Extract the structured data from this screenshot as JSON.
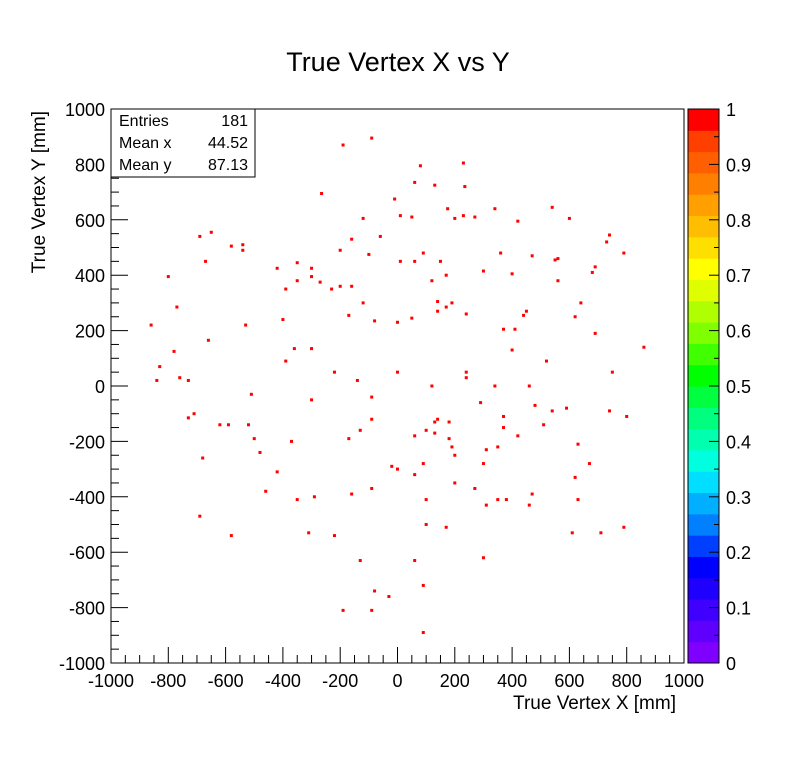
{
  "chart_data": {
    "type": "scatter",
    "title": "True Vertex X vs Y",
    "xlabel": "True Vertex X [mm]",
    "ylabel": "True Vertex Y [mm]",
    "xlim": [
      -1000,
      1000
    ],
    "ylim": [
      -1000,
      1000
    ],
    "x_ticks": [
      -1000,
      -800,
      -600,
      -400,
      -200,
      0,
      200,
      400,
      600,
      800,
      1000
    ],
    "y_ticks": [
      -1000,
      -800,
      -600,
      -400,
      -200,
      0,
      200,
      400,
      600,
      800,
      1000
    ],
    "grid": false,
    "marker_color": "#ff0000",
    "stats_box": {
      "placement": "top-left",
      "rows": [
        {
          "label": "Entries",
          "value": "181"
        },
        {
          "label": "Mean x",
          "value": "44.52"
        },
        {
          "label": "Mean y",
          "value": "87.13"
        }
      ]
    },
    "colorbar": {
      "placement": "right",
      "min": 0,
      "max": 1,
      "tick_labels": [
        "0",
        "0.1",
        "0.2",
        "0.3",
        "0.4",
        "0.5",
        "0.6",
        "0.7",
        "0.8",
        "0.9",
        "1"
      ],
      "colors": [
        "#7f00ff",
        "#5f00ff",
        "#3f00ff",
        "#1f00ff",
        "#0000ff",
        "#003fff",
        "#007fff",
        "#00afff",
        "#00dfff",
        "#00ffdf",
        "#00ffaf",
        "#00ff7f",
        "#00ff3f",
        "#00ff00",
        "#3fff00",
        "#7fff00",
        "#afff00",
        "#dfff00",
        "#ffff00",
        "#ffdf00",
        "#ffbf00",
        "#ff9f00",
        "#ff7f00",
        "#ff5f00",
        "#ff3f00",
        "#ff0000"
      ]
    },
    "points": [
      [
        -190,
        870
      ],
      [
        -90,
        895
      ],
      [
        80,
        795
      ],
      [
        230,
        805
      ],
      [
        -10,
        675
      ],
      [
        60,
        735
      ],
      [
        130,
        725
      ],
      [
        235,
        720
      ],
      [
        -265,
        695
      ],
      [
        340,
        640
      ],
      [
        540,
        645
      ],
      [
        600,
        605
      ],
      [
        420,
        595
      ],
      [
        -120,
        605
      ],
      [
        10,
        615
      ],
      [
        175,
        640
      ],
      [
        200,
        605
      ],
      [
        230,
        615
      ],
      [
        270,
        610
      ],
      [
        50,
        610
      ],
      [
        -690,
        540
      ],
      [
        -650,
        555
      ],
      [
        -580,
        505
      ],
      [
        -540,
        510
      ],
      [
        -540,
        490
      ],
      [
        -200,
        490
      ],
      [
        -160,
        530
      ],
      [
        -60,
        540
      ],
      [
        -100,
        475
      ],
      [
        10,
        450
      ],
      [
        90,
        480
      ],
      [
        60,
        450
      ],
      [
        150,
        450
      ],
      [
        360,
        480
      ],
      [
        470,
        470
      ],
      [
        560,
        460
      ],
      [
        550,
        455
      ],
      [
        690,
        430
      ],
      [
        680,
        410
      ],
      [
        740,
        545
      ],
      [
        730,
        520
      ],
      [
        790,
        480
      ],
      [
        -420,
        425
      ],
      [
        -350,
        445
      ],
      [
        -300,
        425
      ],
      [
        -300,
        395
      ],
      [
        -270,
        375
      ],
      [
        -390,
        350
      ],
      [
        -160,
        360
      ],
      [
        -800,
        395
      ],
      [
        -670,
        450
      ],
      [
        400,
        405
      ],
      [
        300,
        415
      ],
      [
        170,
        400
      ],
      [
        120,
        380
      ],
      [
        560,
        380
      ],
      [
        -770,
        285
      ],
      [
        -530,
        220
      ],
      [
        -400,
        240
      ],
      [
        -350,
        380
      ],
      [
        -230,
        350
      ],
      [
        -200,
        360
      ],
      [
        -120,
        300
      ],
      [
        -170,
        255
      ],
      [
        -80,
        235
      ],
      [
        0,
        230
      ],
      [
        50,
        245
      ],
      [
        140,
        305
      ],
      [
        140,
        270
      ],
      [
        170,
        285
      ],
      [
        190,
        300
      ],
      [
        240,
        260
      ],
      [
        370,
        205
      ],
      [
        410,
        205
      ],
      [
        440,
        255
      ],
      [
        450,
        270
      ],
      [
        620,
        250
      ],
      [
        640,
        300
      ],
      [
        690,
        190
      ],
      [
        -860,
        220
      ],
      [
        -780,
        125
      ],
      [
        -660,
        165
      ],
      [
        -360,
        135
      ],
      [
        -300,
        135
      ],
      [
        -390,
        90
      ],
      [
        -220,
        50
      ],
      [
        -140,
        20
      ],
      [
        0,
        50
      ],
      [
        120,
        0
      ],
      [
        240,
        50
      ],
      [
        240,
        30
      ],
      [
        340,
        0
      ],
      [
        400,
        130
      ],
      [
        460,
        0
      ],
      [
        520,
        90
      ],
      [
        750,
        50
      ],
      [
        860,
        140
      ],
      [
        -830,
        70
      ],
      [
        -840,
        20
      ],
      [
        -760,
        30
      ],
      [
        -730,
        20
      ],
      [
        -730,
        -115
      ],
      [
        -710,
        -100
      ],
      [
        -620,
        -140
      ],
      [
        -590,
        -140
      ],
      [
        -510,
        -30
      ],
      [
        -520,
        -140
      ],
      [
        -500,
        -190
      ],
      [
        -480,
        -240
      ],
      [
        -300,
        -50
      ],
      [
        -90,
        -40
      ],
      [
        -90,
        -120
      ],
      [
        -130,
        -160
      ],
      [
        -170,
        -190
      ],
      [
        60,
        -180
      ],
      [
        100,
        -160
      ],
      [
        130,
        -130
      ],
      [
        140,
        -120
      ],
      [
        130,
        -170
      ],
      [
        180,
        -130
      ],
      [
        180,
        -190
      ],
      [
        190,
        -220
      ],
      [
        290,
        -60
      ],
      [
        310,
        -230
      ],
      [
        350,
        -220
      ],
      [
        370,
        -110
      ],
      [
        370,
        -150
      ],
      [
        420,
        -180
      ],
      [
        480,
        -70
      ],
      [
        510,
        -140
      ],
      [
        540,
        -90
      ],
      [
        590,
        -80
      ],
      [
        630,
        -210
      ],
      [
        670,
        -280
      ],
      [
        800,
        -110
      ],
      [
        740,
        -90
      ],
      [
        -680,
        -260
      ],
      [
        -420,
        -310
      ],
      [
        -370,
        -200
      ],
      [
        -460,
        -380
      ],
      [
        -350,
        -410
      ],
      [
        -290,
        -400
      ],
      [
        -160,
        -390
      ],
      [
        -90,
        -370
      ],
      [
        0,
        -300
      ],
      [
        -20,
        -290
      ],
      [
        90,
        -280
      ],
      [
        200,
        -250
      ],
      [
        200,
        -350
      ],
      [
        60,
        -320
      ],
      [
        300,
        -280
      ],
      [
        310,
        -430
      ],
      [
        270,
        -370
      ],
      [
        350,
        -410
      ],
      [
        380,
        -410
      ],
      [
        470,
        -390
      ],
      [
        460,
        -430
      ],
      [
        620,
        -330
      ],
      [
        630,
        -410
      ],
      [
        610,
        -530
      ],
      [
        710,
        -530
      ],
      [
        790,
        -510
      ],
      [
        -690,
        -470
      ],
      [
        -580,
        -540
      ],
      [
        -310,
        -530
      ],
      [
        -220,
        -540
      ],
      [
        -130,
        -630
      ],
      [
        60,
        -630
      ],
      [
        100,
        -500
      ],
      [
        170,
        -510
      ],
      [
        300,
        -620
      ],
      [
        100,
        -410
      ],
      [
        -80,
        -740
      ],
      [
        -30,
        -760
      ],
      [
        90,
        -720
      ],
      [
        -90,
        -810
      ],
      [
        -190,
        -810
      ],
      [
        90,
        -890
      ]
    ]
  }
}
